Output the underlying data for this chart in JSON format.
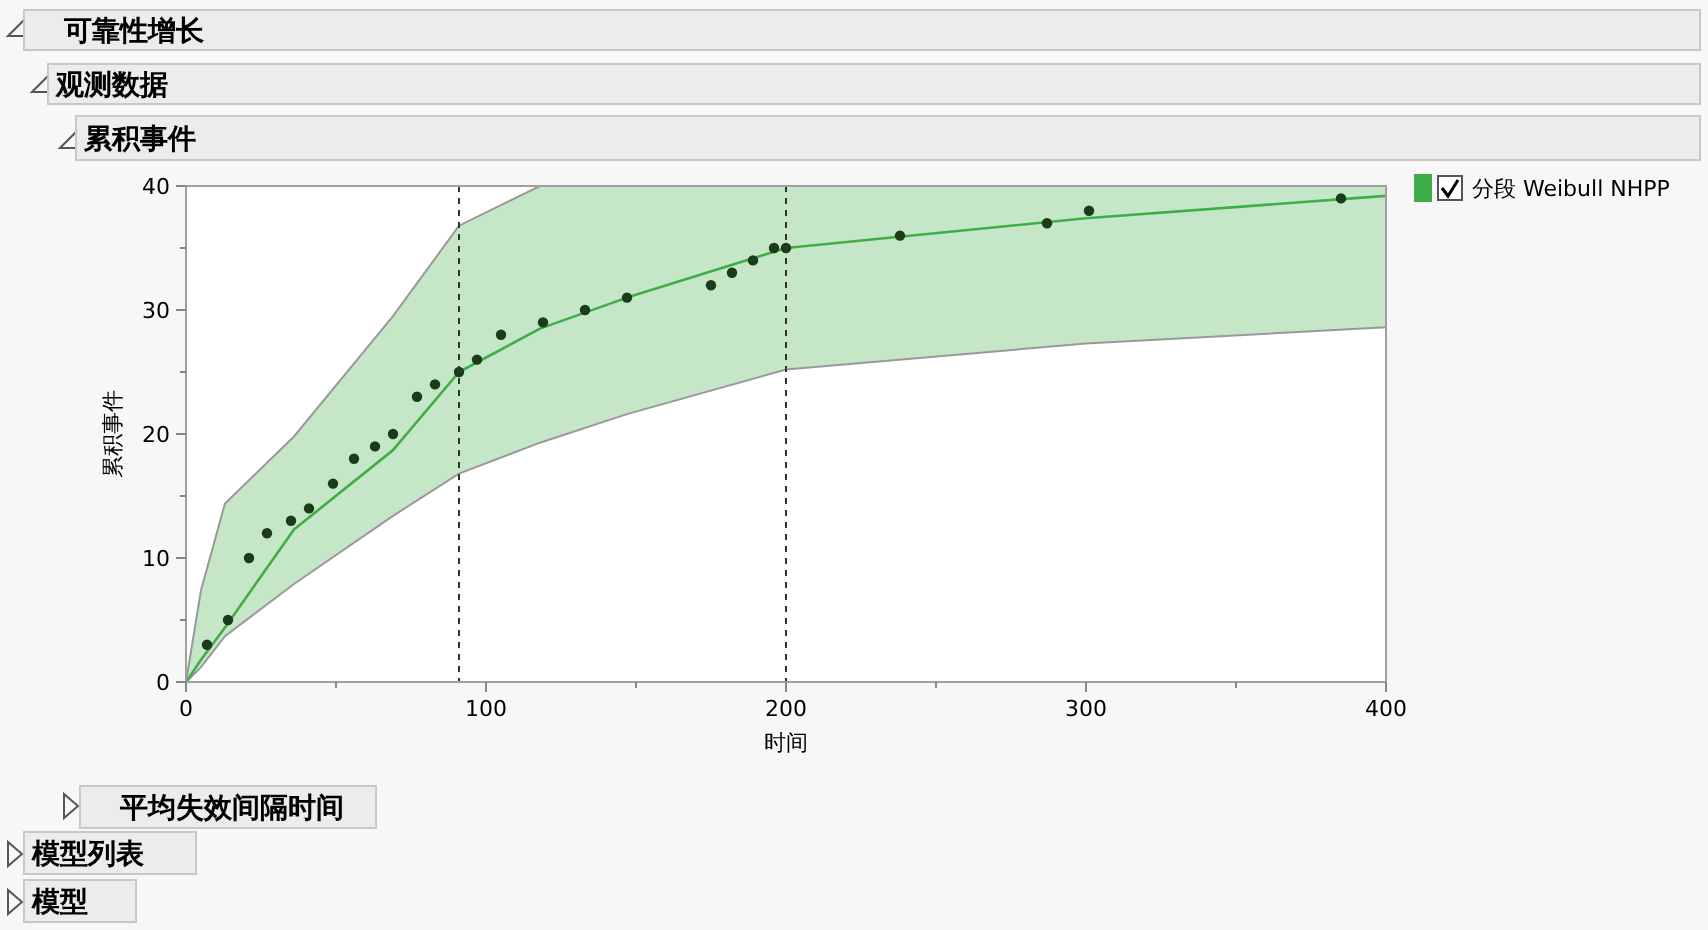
{
  "chart_data": {
    "type": "scatter",
    "title": "可靠性增长",
    "subtitle": "观测数据",
    "annotations": [
      "累积事件",
      "平均失效间隔时间",
      "模型列表",
      "模型"
    ],
    "xlabel": "时间",
    "ylabel": "累积事件",
    "xlim": [
      0,
      400
    ],
    "ylim": [
      0,
      40
    ],
    "xticks": [
      0,
      {
        "value": 50,
        "label": null
      },
      100,
      {
        "value": 150,
        "label": null
      },
      200,
      {
        "value": 250,
        "label": null
      },
      300,
      {
        "value": 350,
        "label": null
      },
      400
    ],
    "yticks": [
      0,
      {
        "value": 5,
        "label": null
      },
      10,
      {
        "value": 15,
        "label": null
      },
      20,
      {
        "value": 25,
        "label": null
      },
      30,
      {
        "value": 35,
        "label": null
      },
      40
    ],
    "legend": "top right",
    "grid": false,
    "ref_lines": [
      {
        "axis": "x",
        "value": 91,
        "line_style": "dashed",
        "color": "#333333"
      },
      {
        "axis": "x",
        "value": 200,
        "line_style": "dashed",
        "color": "#333333"
      }
    ],
    "series": [
      {
        "name": "分段 Weibull NHPP",
        "type": "line",
        "color": "#3fae49",
        "line_style": "solid",
        "marker": "none",
        "x": [
          0,
          5,
          13,
          36,
          69,
          91,
          118,
          147,
          200,
          300,
          400
        ],
        "values": [
          0,
          1.8,
          4.4,
          12.3,
          18.7,
          25,
          28.5,
          31,
          35,
          37.4,
          39.2
        ],
        "lower": [
          0,
          1.2,
          3.7,
          7.9,
          13.4,
          16.8,
          19.3,
          21.6,
          25.2,
          27.3,
          28.6
        ],
        "upper": [
          0,
          7.4,
          14.4,
          19.8,
          29.5,
          36.8,
          40,
          40,
          40,
          40,
          40
        ]
      },
      {
        "color": "#1b3b1b",
        "marker": "circle",
        "x": [
          7,
          14,
          21,
          27,
          35,
          41,
          49,
          56,
          63,
          69,
          77,
          83,
          91,
          97,
          105,
          119,
          133,
          147,
          175,
          182,
          189,
          196,
          200,
          238,
          287,
          301,
          385
        ],
        "values": [
          3,
          5,
          10,
          12,
          13,
          14,
          16,
          18,
          19,
          20,
          23,
          24,
          25,
          26,
          28,
          29,
          30,
          31,
          32,
          33,
          34,
          35,
          35,
          36,
          37,
          38,
          39
        ]
      }
    ]
  }
}
